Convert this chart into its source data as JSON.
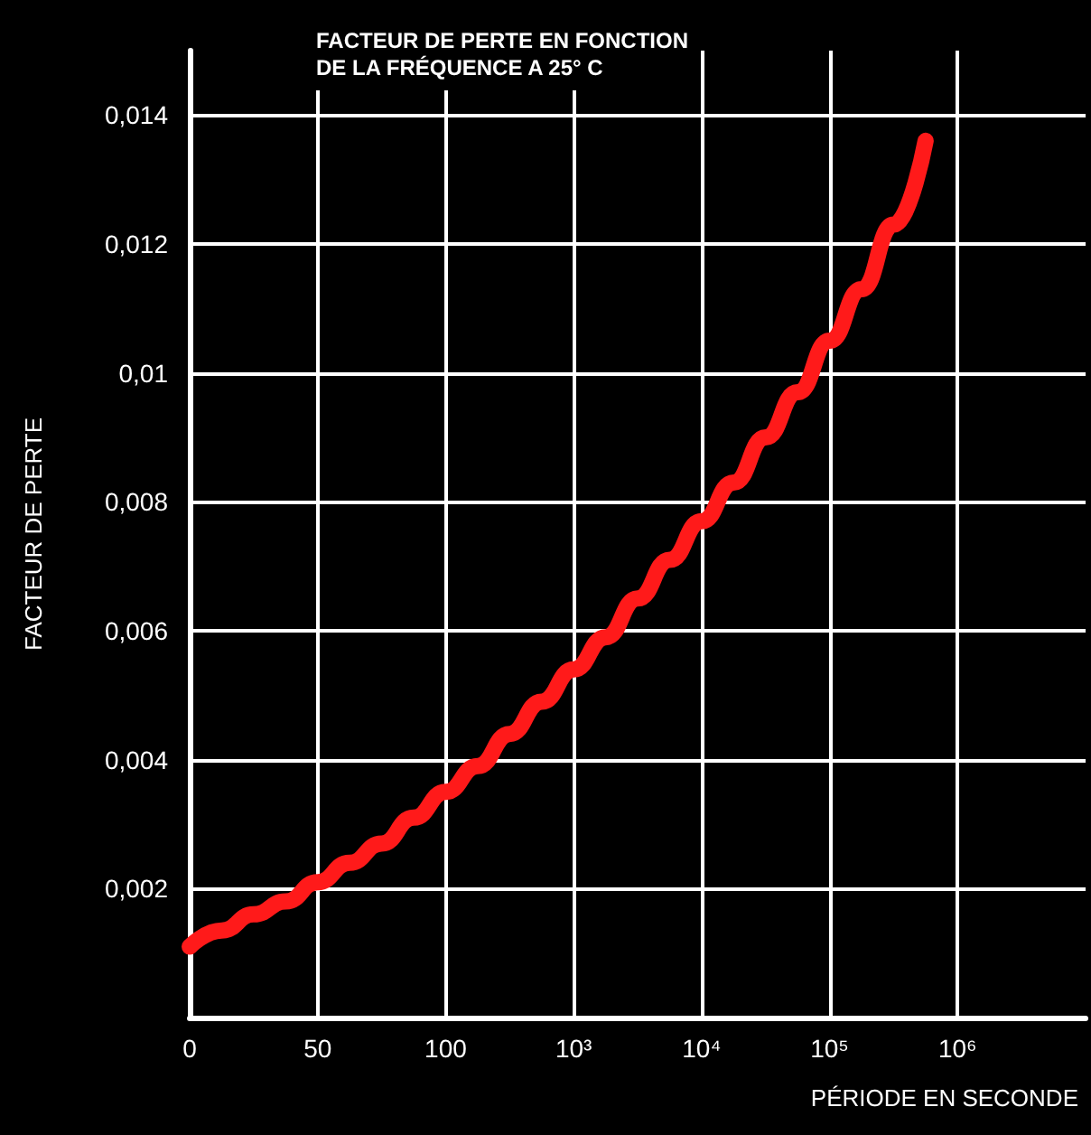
{
  "chart_data": {
    "type": "line",
    "title": "FACTEUR DE PERTE EN FONCTION\nDE LA FRÉQUENCE A 25° C",
    "xlabel": "PÉRIODE EN SECONDE",
    "ylabel": "FACTEUR DE PERTE",
    "categories": [
      "0",
      null,
      null,
      null,
      "50",
      null,
      null,
      null,
      "100",
      null,
      null,
      null,
      "10³",
      null,
      null,
      null,
      "10⁴",
      null,
      null,
      null,
      "10⁵",
      null,
      null,
      null,
      "10⁶",
      null,
      null,
      null,
      null
    ],
    "series": [
      {
        "color": "#ff1a1a",
        "values": [
          0.0011,
          0.00135,
          0.0016,
          0.0018,
          0.0021,
          0.0024,
          0.0027,
          0.0031,
          0.0035,
          0.0039,
          0.0044,
          0.0049,
          0.0054,
          0.0059,
          0.0065,
          0.0071,
          0.0077,
          0.0083,
          0.009,
          0.0097,
          0.0105,
          0.0113,
          0.0123,
          0.0136,
          null,
          null,
          null,
          null,
          null
        ]
      }
    ],
    "ylim": [
      0,
      0.015
    ],
    "yticks": [
      {
        "value": 0,
        "label": null
      },
      {
        "value": 0.002,
        "label": "0,002"
      },
      {
        "value": 0.004,
        "label": "0,004"
      },
      {
        "value": 0.006,
        "label": "0,006"
      },
      {
        "value": 0.008,
        "label": "0,008"
      },
      {
        "value": 0.01,
        "label": "0,01"
      },
      {
        "value": 0.012,
        "label": "0,012"
      },
      {
        "value": 0.014,
        "label": "0,014"
      }
    ],
    "grid": true,
    "line_style": "solid"
  }
}
